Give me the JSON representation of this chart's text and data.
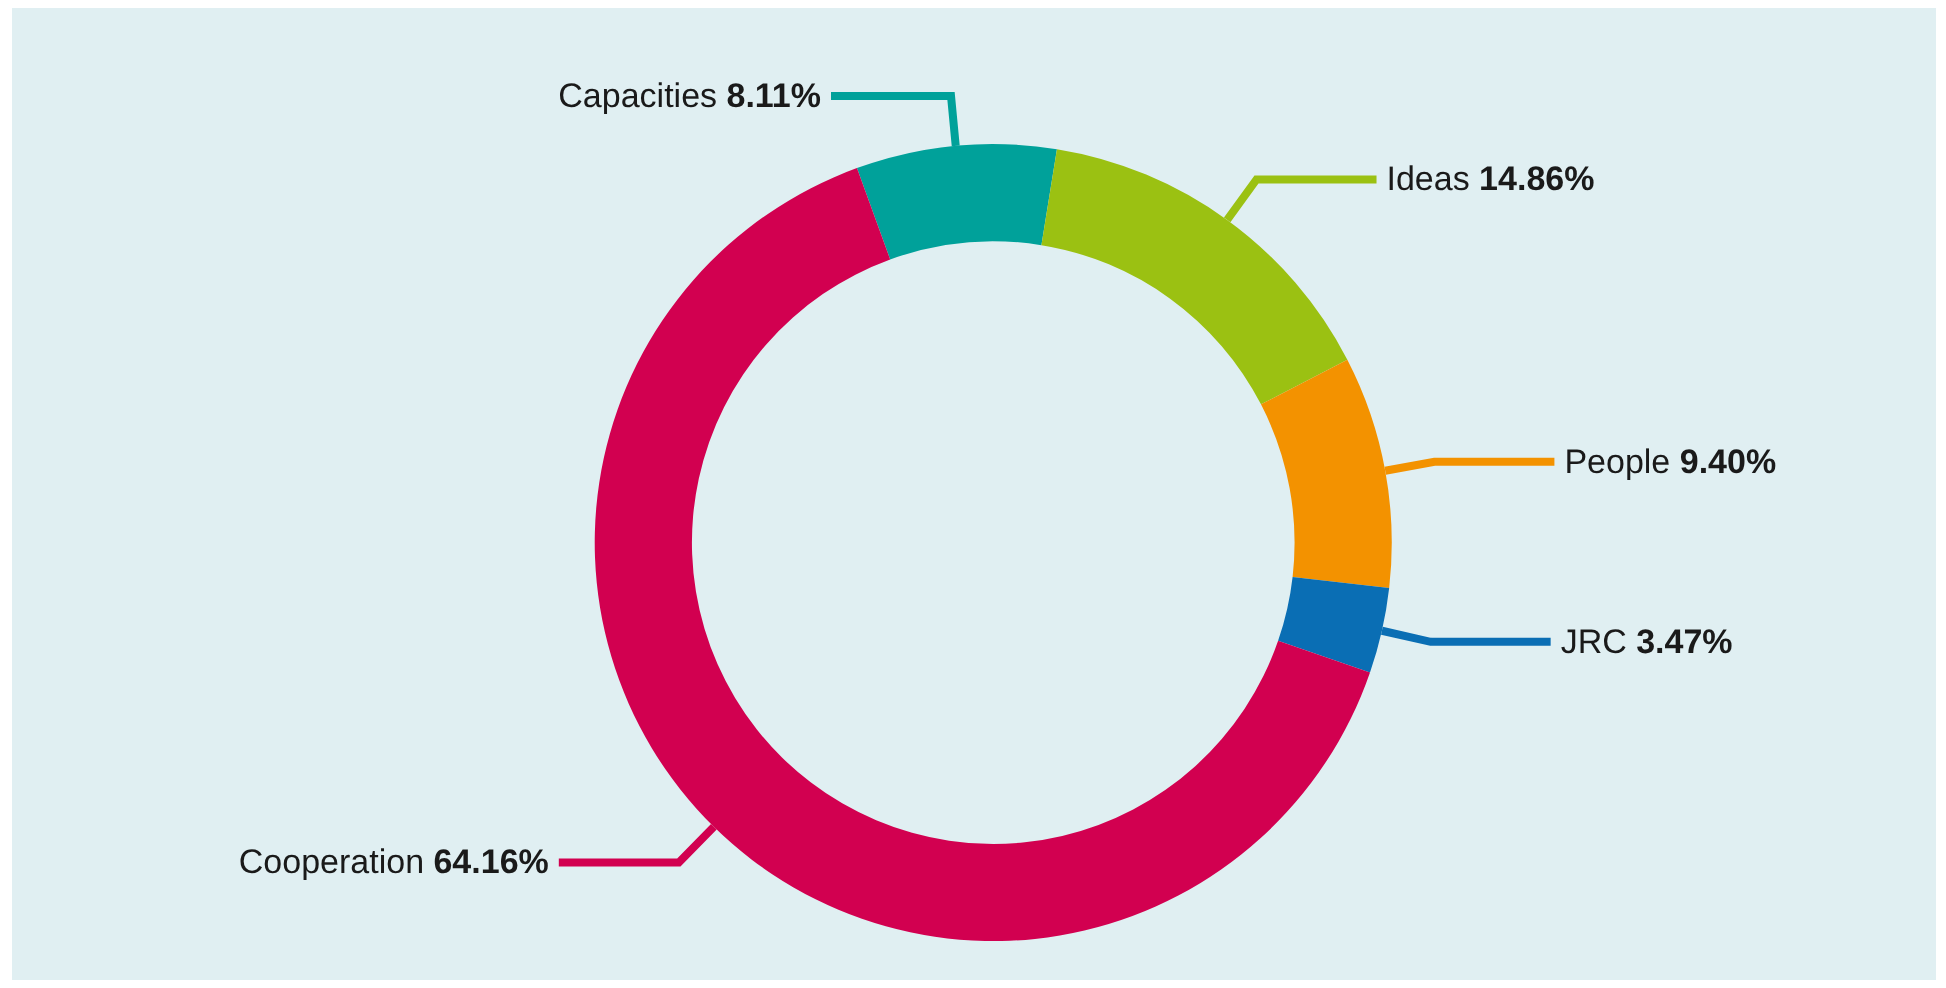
{
  "chart_data": {
    "type": "donut",
    "categories": [
      "Capacities",
      "Ideas",
      "People",
      "JRC",
      "Cooperation"
    ],
    "values": [
      8.11,
      14.86,
      9.4,
      3.47,
      64.16
    ],
    "value_labels": [
      "8.11%",
      "14.86%",
      "9.40%",
      "3.47%",
      "64.16%"
    ],
    "colors": [
      "#00a19a",
      "#9bc112",
      "#f39200",
      "#0a6eb4",
      "#d20050"
    ],
    "legend": false
  }
}
